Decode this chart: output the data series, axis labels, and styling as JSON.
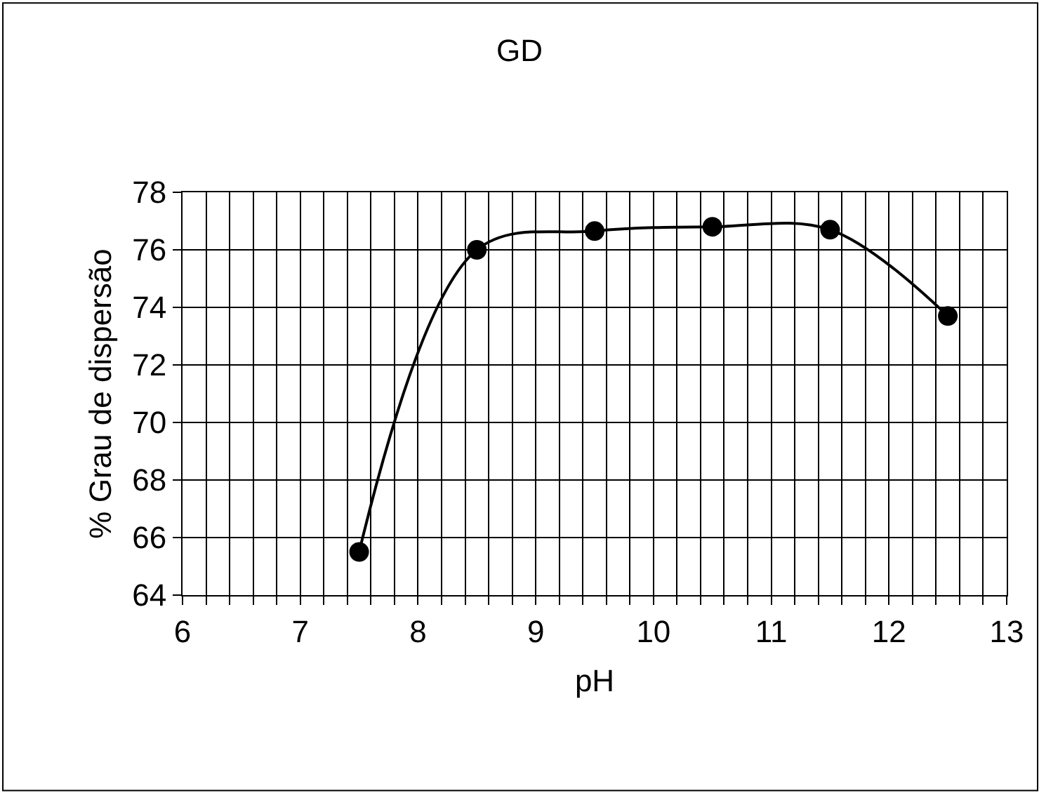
{
  "chart_data": {
    "type": "line",
    "title": "GD",
    "xlabel": "pH",
    "ylabel": "% Grau de dispersão",
    "x": [
      7.5,
      8.5,
      9.5,
      10.5,
      11.5,
      12.5
    ],
    "series": [
      {
        "color": "#000000",
        "values": [
          65.5,
          76.0,
          76.65,
          76.8,
          76.7,
          73.7
        ]
      }
    ],
    "xlim": [
      6,
      13
    ],
    "xticks": [
      6,
      {
        "value": 6.2,
        "label": null
      },
      {
        "value": 6.4,
        "label": null
      },
      {
        "value": 6.6,
        "label": null
      },
      {
        "value": 6.8,
        "label": null
      },
      7,
      {
        "value": 7.2,
        "label": null
      },
      {
        "value": 7.4,
        "label": null
      },
      {
        "value": 7.6,
        "label": null
      },
      {
        "value": 7.8,
        "label": null
      },
      8,
      {
        "value": 8.2,
        "label": null
      },
      {
        "value": 8.4,
        "label": null
      },
      {
        "value": 8.6,
        "label": null
      },
      {
        "value": 8.8,
        "label": null
      },
      9,
      {
        "value": 9.2,
        "label": null
      },
      {
        "value": 9.4,
        "label": null
      },
      {
        "value": 9.6,
        "label": null
      },
      {
        "value": 9.8,
        "label": null
      },
      10,
      {
        "value": 10.2,
        "label": null
      },
      {
        "value": 10.4,
        "label": null
      },
      {
        "value": 10.6,
        "label": null
      },
      {
        "value": 10.8,
        "label": null
      },
      11,
      {
        "value": 11.2,
        "label": null
      },
      {
        "value": 11.4,
        "label": null
      },
      {
        "value": 11.6,
        "label": null
      },
      {
        "value": 11.8,
        "label": null
      },
      12,
      {
        "value": 12.2,
        "label": null
      },
      {
        "value": 12.4,
        "label": null
      },
      {
        "value": 12.6,
        "label": null
      },
      {
        "value": 12.8,
        "label": null
      },
      13
    ],
    "ylim": [
      64,
      78
    ],
    "yticks": [
      64,
      66,
      68,
      70,
      72,
      74,
      76,
      78
    ],
    "grid": true,
    "marker": "circle",
    "line_style": "solid"
  }
}
